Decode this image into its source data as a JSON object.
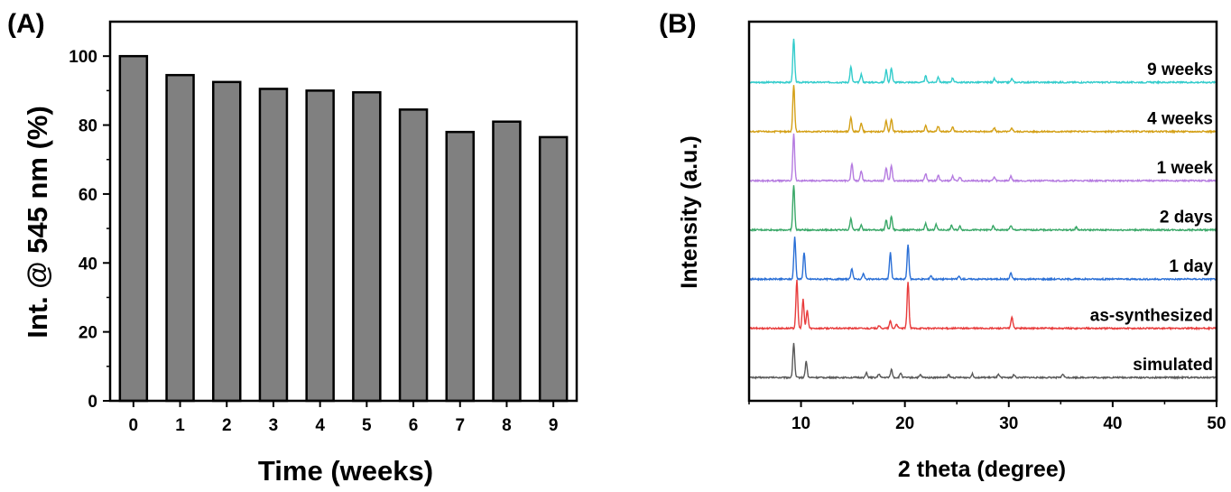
{
  "chart_data": [
    {
      "type": "bar",
      "panel_label": "(A)",
      "xlabel": "Time (weeks)",
      "ylabel": "Int. @ 545 nm (%)",
      "categories": [
        "0",
        "1",
        "2",
        "3",
        "4",
        "5",
        "6",
        "7",
        "8",
        "9"
      ],
      "values": [
        100,
        94.5,
        92.5,
        90.5,
        90,
        89.5,
        84.5,
        78,
        81,
        76.5
      ],
      "ylim": [
        0,
        110
      ],
      "yticks": [
        0,
        20,
        40,
        60,
        80,
        100
      ],
      "bar_color": "#808080",
      "grid": false
    },
    {
      "type": "line",
      "panel_label": "(B)",
      "xlabel": "2 theta (degree)",
      "ylabel": "Intensity (a.u.)",
      "xlim": [
        5,
        50
      ],
      "xticks": [
        10,
        20,
        30,
        40,
        50
      ],
      "grid": false,
      "series": [
        {
          "name": "simulated",
          "color": "#595959",
          "peaks": [
            [
              9.3,
              38
            ],
            [
              10.5,
              18
            ],
            [
              16.3,
              5
            ],
            [
              17.5,
              4
            ],
            [
              18.7,
              9
            ],
            [
              19.6,
              5
            ],
            [
              21.5,
              3
            ],
            [
              24.2,
              3
            ],
            [
              26.5,
              4
            ],
            [
              29,
              3
            ],
            [
              30.5,
              3
            ],
            [
              35.2,
              4
            ]
          ]
        },
        {
          "name": "as-synthesized",
          "color": "#e83b3b",
          "peaks": [
            [
              9.6,
              53
            ],
            [
              10.2,
              32
            ],
            [
              10.6,
              20
            ],
            [
              17.5,
              3
            ],
            [
              18.6,
              8
            ],
            [
              19.2,
              5
            ],
            [
              20.3,
              52
            ],
            [
              30.3,
              13
            ]
          ]
        },
        {
          "name": "1 day",
          "color": "#2a6fd6",
          "peaks": [
            [
              9.4,
              47
            ],
            [
              10.3,
              30
            ],
            [
              14.9,
              12
            ],
            [
              16,
              6
            ],
            [
              18.6,
              30
            ],
            [
              20.3,
              38
            ],
            [
              22.5,
              4
            ],
            [
              25.2,
              3
            ],
            [
              30.2,
              7
            ]
          ]
        },
        {
          "name": "2 days",
          "color": "#3aa868",
          "peaks": [
            [
              9.3,
              50
            ],
            [
              14.8,
              13
            ],
            [
              15.8,
              6
            ],
            [
              18.2,
              11
            ],
            [
              18.7,
              15
            ],
            [
              22,
              7
            ],
            [
              23,
              6
            ],
            [
              24.5,
              5
            ],
            [
              25.3,
              4
            ],
            [
              28.5,
              4
            ],
            [
              30.2,
              5
            ],
            [
              36.5,
              3
            ]
          ]
        },
        {
          "name": "1 week",
          "color": "#b57be0",
          "peaks": [
            [
              9.3,
              52
            ],
            [
              14.9,
              19
            ],
            [
              15.8,
              11
            ],
            [
              18.2,
              14
            ],
            [
              18.7,
              17
            ],
            [
              22,
              8
            ],
            [
              23.2,
              6
            ],
            [
              24.6,
              5
            ],
            [
              25.3,
              4
            ],
            [
              28.6,
              4
            ],
            [
              30.2,
              5
            ]
          ]
        },
        {
          "name": "4 weeks",
          "color": "#d4a017",
          "peaks": [
            [
              9.3,
              52
            ],
            [
              14.8,
              16
            ],
            [
              15.8,
              9
            ],
            [
              18.2,
              12
            ],
            [
              18.7,
              14
            ],
            [
              22,
              7
            ],
            [
              23.2,
              6
            ],
            [
              24.6,
              5
            ],
            [
              28.6,
              4
            ],
            [
              30.3,
              4
            ]
          ]
        },
        {
          "name": "9 weeks",
          "color": "#33cccc",
          "peaks": [
            [
              9.3,
              48
            ],
            [
              14.8,
              17
            ],
            [
              15.8,
              9
            ],
            [
              18.2,
              14
            ],
            [
              18.7,
              16
            ],
            [
              22,
              7
            ],
            [
              23.2,
              6
            ],
            [
              24.6,
              5
            ],
            [
              28.6,
              4
            ],
            [
              30.3,
              4
            ]
          ]
        }
      ]
    }
  ]
}
